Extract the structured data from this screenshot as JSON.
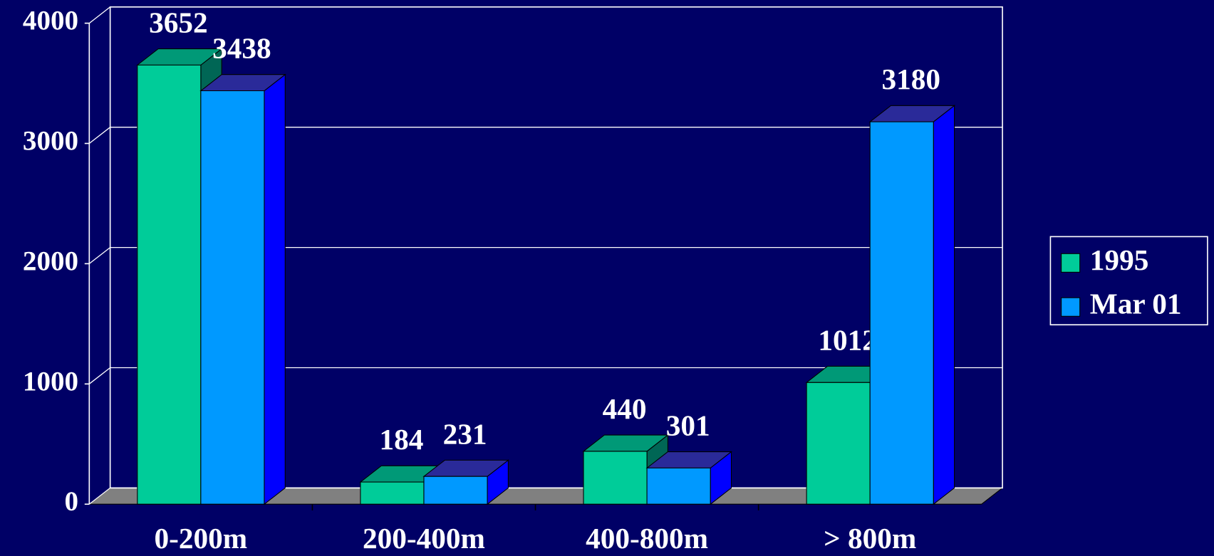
{
  "chart_data": {
    "type": "bar3d",
    "categories": [
      "0-200m",
      "200-400m",
      "400-800m",
      "> 800m"
    ],
    "series": [
      {
        "name": "1995",
        "color": "#00cc99",
        "values": [
          3652,
          184,
          440,
          1012
        ]
      },
      {
        "name": "Mar 01",
        "color": "#0099ff",
        "values": [
          3438,
          231,
          301,
          3180
        ]
      }
    ],
    "ylim": [
      0,
      4000
    ],
    "yticks": [
      0,
      1000,
      2000,
      3000,
      4000
    ],
    "grid": true,
    "legend": "right"
  }
}
